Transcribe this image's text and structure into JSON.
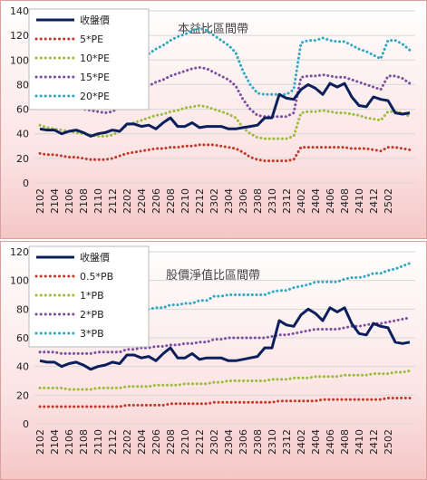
{
  "chart_data": [
    {
      "type": "line",
      "title": "本益比區間帶",
      "ylim": [
        0,
        140
      ],
      "yticks": [
        0,
        20,
        40,
        60,
        80,
        100,
        120,
        140
      ],
      "xtick_labels": [
        "2102",
        "2104",
        "2106",
        "2108",
        "2110",
        "2112",
        "2202",
        "2204",
        "2206",
        "2208",
        "2210",
        "2212",
        "2302",
        "2304",
        "2306",
        "2308",
        "2310",
        "2312",
        "2402",
        "2404",
        "2406",
        "2408",
        "2410",
        "2412",
        "2502"
      ],
      "grid": true,
      "legend_position": "top-left",
      "series": [
        {
          "name": "收盤價",
          "color": "#0b1f5c",
          "style": "solid",
          "values": [
            44,
            43,
            43,
            40,
            42,
            43,
            41,
            38,
            40,
            41,
            43,
            42,
            48,
            48,
            46,
            47,
            44,
            49,
            53,
            46,
            46,
            49,
            45,
            46,
            46,
            46,
            44,
            44,
            45,
            46,
            47,
            53,
            53,
            72,
            69,
            68,
            76,
            80,
            77,
            72,
            81,
            78,
            81,
            70,
            63,
            62,
            70,
            68,
            67,
            57,
            56,
            57
          ]
        },
        {
          "name": "5*PE",
          "color": "#c0392b",
          "style": "dotted",
          "values": [
            24,
            23,
            23,
            22,
            21,
            21,
            20,
            19,
            19,
            19,
            20,
            22,
            24,
            25,
            26,
            27,
            28,
            28,
            29,
            29,
            30,
            30,
            31,
            31,
            31,
            30,
            29,
            28,
            25,
            21,
            19,
            18,
            18,
            18,
            18,
            19,
            29,
            29,
            29,
            29,
            29,
            29,
            29,
            28,
            28,
            28,
            27,
            26,
            29,
            29,
            28,
            27
          ]
        },
        {
          "name": "10*PE",
          "color": "#9bbb3b",
          "style": "dotted",
          "values": [
            47,
            45,
            44,
            43,
            42,
            41,
            40,
            39,
            38,
            38,
            39,
            42,
            47,
            49,
            51,
            53,
            55,
            56,
            58,
            59,
            61,
            62,
            63,
            62,
            60,
            58,
            56,
            53,
            45,
            40,
            37,
            36,
            36,
            36,
            36,
            38,
            57,
            58,
            58,
            59,
            58,
            57,
            57,
            56,
            55,
            53,
            52,
            51,
            58,
            58,
            57,
            54
          ]
        },
        {
          "name": "15*PE",
          "color": "#7b4fa0",
          "style": "dotted",
          "values": [
            70,
            68,
            66,
            64,
            63,
            62,
            60,
            59,
            58,
            57,
            58,
            62,
            70,
            73,
            76,
            79,
            82,
            84,
            87,
            89,
            91,
            93,
            94,
            93,
            90,
            87,
            84,
            79,
            68,
            60,
            55,
            54,
            54,
            54,
            54,
            57,
            86,
            87,
            87,
            88,
            87,
            86,
            86,
            84,
            82,
            80,
            78,
            76,
            87,
            87,
            85,
            81
          ]
        },
        {
          "name": "20*PE",
          "color": "#2fa8c0",
          "style": "dotted",
          "values": [
            94,
            91,
            88,
            86,
            84,
            82,
            80,
            79,
            77,
            76,
            78,
            83,
            94,
            98,
            102,
            105,
            109,
            112,
            116,
            119,
            121,
            124,
            126,
            124,
            120,
            116,
            112,
            106,
            91,
            80,
            73,
            72,
            72,
            72,
            72,
            76,
            114,
            116,
            116,
            118,
            116,
            115,
            115,
            112,
            109,
            107,
            104,
            101,
            116,
            116,
            113,
            108
          ]
        }
      ]
    },
    {
      "type": "line",
      "title": "股價淨值比區間帶",
      "ylim": [
        0,
        120
      ],
      "yticks": [
        0,
        20,
        40,
        60,
        80,
        100,
        120
      ],
      "xtick_labels": [
        "2102",
        "2104",
        "2106",
        "2108",
        "2110",
        "2112",
        "2202",
        "2204",
        "2206",
        "2208",
        "2210",
        "2212",
        "2302",
        "2304",
        "2306",
        "2308",
        "2310",
        "2312",
        "2402",
        "2404",
        "2406",
        "2408",
        "2410",
        "2412",
        "2502"
      ],
      "grid": true,
      "legend_position": "top-left",
      "series": [
        {
          "name": "收盤價",
          "color": "#0b1f5c",
          "style": "solid",
          "values": [
            44,
            43,
            43,
            40,
            42,
            43,
            41,
            38,
            40,
            41,
            43,
            42,
            48,
            48,
            46,
            47,
            44,
            49,
            53,
            46,
            46,
            49,
            45,
            46,
            46,
            46,
            44,
            44,
            45,
            46,
            47,
            53,
            53,
            72,
            69,
            68,
            76,
            80,
            77,
            72,
            81,
            78,
            81,
            70,
            63,
            62,
            70,
            68,
            67,
            57,
            56,
            57
          ]
        },
        {
          "name": "0.5*PB",
          "color": "#c0392b",
          "style": "dotted",
          "values": [
            12,
            12,
            12,
            12,
            12,
            12,
            12,
            12,
            12,
            12,
            12,
            12,
            13,
            13,
            13,
            13,
            13,
            13,
            14,
            14,
            14,
            14,
            14,
            14,
            15,
            15,
            15,
            15,
            15,
            15,
            15,
            15,
            15,
            16,
            16,
            16,
            16,
            16,
            16,
            17,
            17,
            17,
            17,
            17,
            17,
            17,
            17,
            17,
            18,
            18,
            18,
            18
          ]
        },
        {
          "name": "1*PB",
          "color": "#9bbb3b",
          "style": "dotted",
          "values": [
            25,
            25,
            25,
            25,
            24,
            24,
            24,
            24,
            25,
            25,
            25,
            25,
            26,
            26,
            26,
            26,
            27,
            27,
            27,
            27,
            28,
            28,
            28,
            28,
            29,
            29,
            30,
            30,
            30,
            30,
            30,
            30,
            31,
            31,
            31,
            32,
            32,
            32,
            33,
            33,
            33,
            33,
            34,
            34,
            34,
            34,
            35,
            35,
            35,
            36,
            36,
            37
          ]
        },
        {
          "name": "2*PB",
          "color": "#7b4fa0",
          "style": "dotted",
          "values": [
            50,
            50,
            50,
            49,
            49,
            49,
            49,
            49,
            50,
            50,
            50,
            50,
            52,
            52,
            53,
            53,
            54,
            54,
            55,
            55,
            56,
            56,
            57,
            57,
            59,
            59,
            60,
            60,
            60,
            60,
            60,
            60,
            61,
            62,
            62,
            63,
            64,
            65,
            66,
            66,
            66,
            66,
            67,
            68,
            68,
            69,
            70,
            70,
            71,
            72,
            73,
            74
          ]
        },
        {
          "name": "3*PB",
          "color": "#2fa8c0",
          "style": "dotted",
          "values": [
            75,
            75,
            75,
            74,
            74,
            74,
            73,
            73,
            75,
            75,
            75,
            75,
            78,
            78,
            79,
            80,
            81,
            81,
            83,
            83,
            84,
            84,
            86,
            86,
            89,
            89,
            90,
            90,
            90,
            90,
            90,
            90,
            92,
            93,
            93,
            95,
            96,
            97,
            99,
            99,
            99,
            99,
            101,
            102,
            102,
            103,
            105,
            105,
            107,
            108,
            110,
            112
          ]
        }
      ]
    }
  ]
}
